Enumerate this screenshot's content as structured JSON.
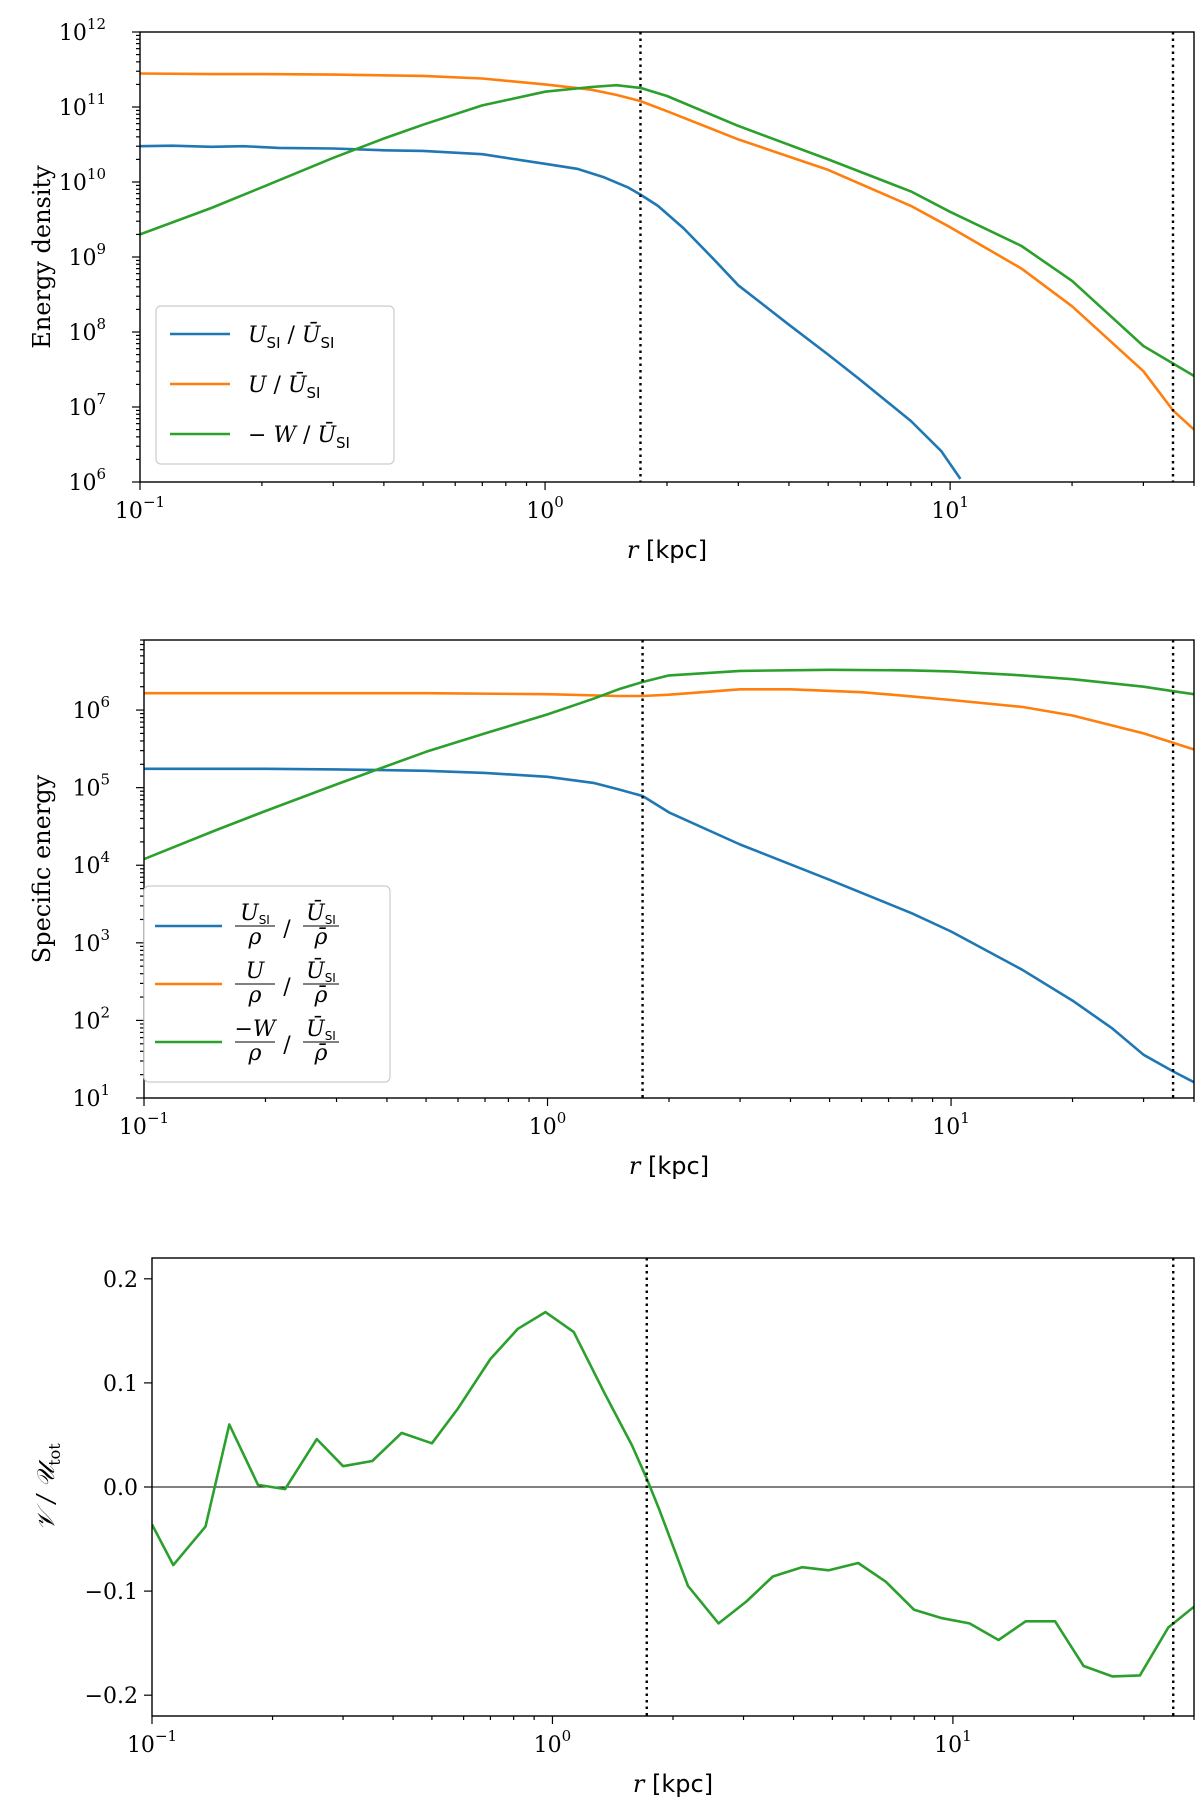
{
  "chart_data": [
    {
      "type": "line",
      "xscale": "log",
      "yscale": "log",
      "xlim": [
        0.1,
        40
      ],
      "ylim": [
        1000000.0,
        1000000000000.0
      ],
      "xlabel_var": "r",
      "xlabel_unit": "[kpc]",
      "ylabel": "Energy density",
      "x_ticks": [
        {
          "value": 0.1,
          "base": "10",
          "exp": "−1"
        },
        {
          "value": 1,
          "base": "10",
          "exp": "0"
        },
        {
          "value": 10,
          "base": "10",
          "exp": "1"
        }
      ],
      "y_ticks": [
        {
          "value": 1000000.0,
          "base": "10",
          "exp": "6"
        },
        {
          "value": 10000000.0,
          "base": "10",
          "exp": "7"
        },
        {
          "value": 100000000.0,
          "base": "10",
          "exp": "8"
        },
        {
          "value": 1000000000.0,
          "base": "10",
          "exp": "9"
        },
        {
          "value": 10000000000.0,
          "base": "10",
          "exp": "10"
        },
        {
          "value": 100000000000.0,
          "base": "10",
          "exp": "11"
        },
        {
          "value": 1000000000000.0,
          "base": "10",
          "exp": "12"
        }
      ],
      "vlines": [
        1.72,
        35.5
      ],
      "legend_position": "lower-left",
      "series": [
        {
          "name": "U_SI / Ū_SI",
          "legend": {
            "a": "U",
            "a_sub": "SI",
            "b": "Ū",
            "b_sub": "SI",
            "pre": ""
          },
          "color": "#1f77b4",
          "x": [
            0.1,
            0.12,
            0.15,
            0.18,
            0.22,
            0.3,
            0.4,
            0.5,
            0.7,
            1.0,
            1.2,
            1.4,
            1.6,
            1.72,
            1.9,
            2.2,
            2.6,
            3.0,
            4.0,
            5.0,
            6.0,
            8.0,
            9.5,
            10.6
          ],
          "y": [
            30000000000.0,
            30500000000.0,
            29500000000.0,
            30000000000.0,
            28500000000.0,
            28000000000.0,
            26500000000.0,
            26000000000.0,
            23500000000.0,
            17500000000.0,
            15000000000.0,
            11500000000.0,
            8500000000.0,
            6800000000.0,
            4800000000.0,
            2400000000.0,
            950000000.0,
            420000000.0,
            125000000.0,
            50000000.0,
            23000000.0,
            6500000.0,
            2600000.0,
            1100000.0
          ]
        },
        {
          "name": "U / Ū_SI",
          "legend": {
            "a": "U",
            "a_sub": "",
            "b": "Ū",
            "b_sub": "SI",
            "pre": ""
          },
          "color": "#ff7f0e",
          "x": [
            0.1,
            0.15,
            0.2,
            0.3,
            0.5,
            0.7,
            1.0,
            1.3,
            1.5,
            1.72,
            2.0,
            3.0,
            5.0,
            8.0,
            10,
            15,
            20,
            30,
            35.5,
            40
          ],
          "y": [
            280000000000.0,
            275000000000.0,
            275000000000.0,
            270000000000.0,
            260000000000.0,
            240000000000.0,
            200000000000.0,
            170000000000.0,
            145000000000.0,
            120000000000.0,
            88000000000.0,
            37000000000.0,
            14500000000.0,
            4800000000.0,
            2500000000.0,
            700000000.0,
            220000000.0,
            30000000.0,
            9000000.0,
            5000000.0
          ]
        },
        {
          "name": "−W / Ū_SI",
          "legend": {
            "a": "W",
            "a_sub": "",
            "b": "Ū",
            "b_sub": "SI",
            "pre": "−"
          },
          "color": "#2ca02c",
          "x": [
            0.1,
            0.15,
            0.2,
            0.3,
            0.4,
            0.5,
            0.7,
            1.0,
            1.3,
            1.5,
            1.72,
            2.0,
            3.0,
            5.0,
            8.0,
            10,
            15,
            20,
            25,
            30,
            35.5,
            40
          ],
          "y": [
            2000000000.0,
            4500000000.0,
            8500000000.0,
            21000000000.0,
            38000000000.0,
            58000000000.0,
            105000000000.0,
            160000000000.0,
            185000000000.0,
            195000000000.0,
            180000000000.0,
            140000000000.0,
            56000000000.0,
            20000000000.0,
            7500000000.0,
            4000000000.0,
            1400000000.0,
            480000000.0,
            160000000.0,
            65000000.0,
            38000000.0,
            26000000.0
          ]
        }
      ]
    },
    {
      "type": "line",
      "xscale": "log",
      "yscale": "log",
      "xlim": [
        0.1,
        40
      ],
      "ylim": [
        10,
        8000000.0
      ],
      "xlabel_var": "r",
      "xlabel_unit": "[kpc]",
      "ylabel": "Specific energy",
      "x_ticks": [
        {
          "value": 0.1,
          "base": "10",
          "exp": "−1"
        },
        {
          "value": 1,
          "base": "10",
          "exp": "0"
        },
        {
          "value": 10,
          "base": "10",
          "exp": "1"
        }
      ],
      "y_ticks": [
        {
          "value": 10,
          "base": "10",
          "exp": "1"
        },
        {
          "value": 100,
          "base": "10",
          "exp": "2"
        },
        {
          "value": 1000,
          "base": "10",
          "exp": "3"
        },
        {
          "value": 10000.0,
          "base": "10",
          "exp": "4"
        },
        {
          "value": 100000.0,
          "base": "10",
          "exp": "5"
        },
        {
          "value": 1000000.0,
          "base": "10",
          "exp": "6"
        }
      ],
      "vlines": [
        1.72,
        35.5
      ],
      "legend_position": "lower-left",
      "series": [
        {
          "name": "(U_SI/ρ) / (Ū_SI/ρ̄)",
          "legend": {
            "num": "U",
            "num_sub": "SI",
            "pre": ""
          },
          "color": "#1f77b4",
          "x": [
            0.1,
            0.15,
            0.2,
            0.3,
            0.5,
            0.7,
            1.0,
            1.3,
            1.5,
            1.72,
            2.0,
            3.0,
            5.0,
            8.0,
            10,
            15,
            20,
            25,
            30,
            35.5,
            40
          ],
          "y": [
            175000.0,
            175000.0,
            175000.0,
            172000.0,
            165000.0,
            155000.0,
            138000.0,
            115000.0,
            95000.0,
            78000.0,
            48000.0,
            18500.0,
            6500.0,
            2400.0,
            1400.0,
            450.0,
            180.0,
            80.0,
            36.0,
            22.0,
            16.0
          ]
        },
        {
          "name": "(U/ρ) / (Ū_SI/ρ̄)",
          "legend": {
            "num": "U",
            "num_sub": "",
            "pre": ""
          },
          "color": "#ff7f0e",
          "x": [
            0.1,
            0.2,
            0.5,
            1.0,
            1.5,
            1.72,
            2.0,
            3.0,
            4.0,
            6.0,
            8.0,
            10,
            15,
            20,
            30,
            35.5,
            40
          ],
          "y": [
            1650000.0,
            1650000.0,
            1650000.0,
            1600000.0,
            1520000.0,
            1520000.0,
            1580000.0,
            1850000.0,
            1850000.0,
            1700000.0,
            1500000.0,
            1350000.0,
            1100000.0,
            850000.0,
            500000.0,
            380000.0,
            310000.0
          ]
        },
        {
          "name": "(−W/ρ) / (Ū_SI/ρ̄)",
          "legend": {
            "num": "W",
            "num_sub": "",
            "pre": "−"
          },
          "color": "#2ca02c",
          "x": [
            0.1,
            0.15,
            0.2,
            0.3,
            0.4,
            0.5,
            0.7,
            1.0,
            1.3,
            1.5,
            1.72,
            2.0,
            3.0,
            5.0,
            8.0,
            10,
            15,
            20,
            30,
            35.5,
            40
          ],
          "y": [
            12000.0,
            28000.0,
            50000.0,
            110000.0,
            190000.0,
            290000.0,
            500000.0,
            880000.0,
            1400000.0,
            1850000.0,
            2300000.0,
            2800000.0,
            3200000.0,
            3300000.0,
            3250000.0,
            3150000.0,
            2800000.0,
            2500000.0,
            2000000.0,
            1750000.0,
            1600000.0
          ]
        }
      ]
    },
    {
      "type": "line",
      "xscale": "log",
      "yscale": "linear",
      "xlim": [
        0.1,
        40
      ],
      "ylim": [
        -0.22,
        0.22
      ],
      "xlabel_var": "r",
      "xlabel_unit": "[kpc]",
      "ylabel": "𝒱 / 𝒰",
      "ylabel_sub": "tot",
      "x_ticks": [
        {
          "value": 0.1,
          "base": "10",
          "exp": "−1"
        },
        {
          "value": 1,
          "base": "10",
          "exp": "0"
        },
        {
          "value": 10,
          "base": "10",
          "exp": "1"
        }
      ],
      "y_ticks": [
        {
          "value": -0.2,
          "label": "−0.2"
        },
        {
          "value": -0.1,
          "label": "−0.1"
        },
        {
          "value": 0.0,
          "label": "0.0"
        },
        {
          "value": 0.1,
          "label": "0.1"
        },
        {
          "value": 0.2,
          "label": "0.2"
        }
      ],
      "hline": 0.0,
      "vlines": [
        1.72,
        35.5
      ],
      "series": [
        {
          "color": "#2ca02c",
          "x": [
            0.1,
            0.113,
            0.136,
            0.156,
            0.184,
            0.215,
            0.258,
            0.3,
            0.355,
            0.42,
            0.5,
            0.58,
            0.7,
            0.82,
            0.96,
            1.13,
            1.35,
            1.58,
            1.72,
            1.85,
            2.18,
            2.6,
            3.05,
            3.55,
            4.2,
            4.9,
            5.8,
            6.8,
            8.0,
            9.4,
            11.0,
            13.0,
            15.2,
            18.0,
            21.2,
            25.0,
            29.3,
            34.5,
            40.0
          ],
          "y": [
            -0.036,
            -0.075,
            -0.038,
            0.06,
            0.002,
            -0.002,
            0.046,
            0.02,
            0.025,
            0.052,
            0.042,
            0.075,
            0.123,
            0.152,
            0.168,
            0.149,
            0.09,
            0.04,
            0.008,
            -0.022,
            -0.095,
            -0.131,
            -0.11,
            -0.086,
            -0.077,
            -0.08,
            -0.073,
            -0.091,
            -0.118,
            -0.126,
            -0.131,
            -0.147,
            -0.129,
            -0.129,
            -0.172,
            -0.182,
            -0.181,
            -0.135,
            -0.115
          ]
        }
      ]
    }
  ]
}
